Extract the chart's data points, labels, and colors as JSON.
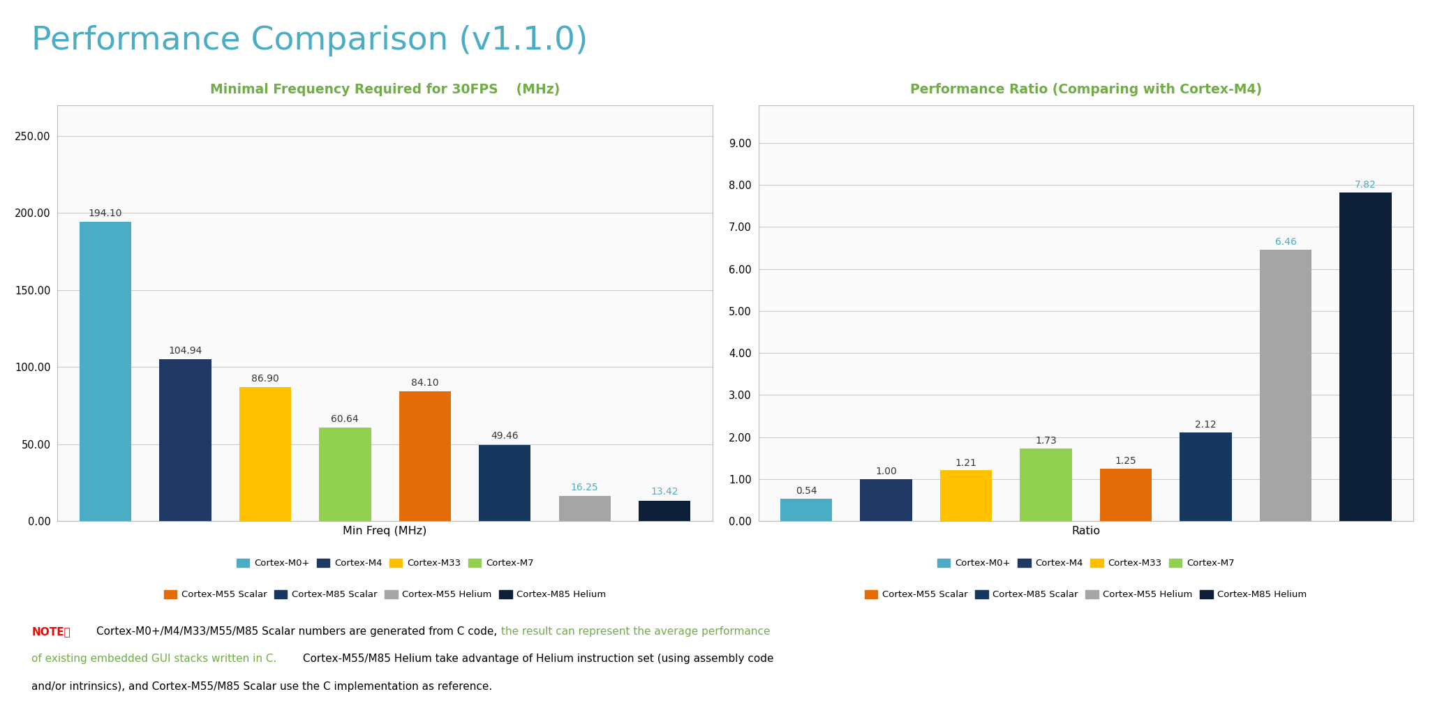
{
  "title": "Performance Comparison (v1.1.0)",
  "title_color": "#4BACC6",
  "chart1_title": "Minimal Frequency Required for 30FPS    (MHz)",
  "chart1_title_color": "#70AD47",
  "chart1_xlabel": "Min Freq (MHz)",
  "chart1_values": [
    194.1,
    104.94,
    86.9,
    60.64,
    84.1,
    49.46,
    16.25,
    13.42
  ],
  "chart1_ylim": [
    0,
    270
  ],
  "chart1_yticks": [
    0.0,
    50.0,
    100.0,
    150.0,
    200.0,
    250.0
  ],
  "chart2_title": "Performance Ratio (Comparing with Cortex-M4)",
  "chart2_title_color": "#70AD47",
  "chart2_xlabel": "Ratio",
  "chart2_values": [
    0.54,
    1.0,
    1.21,
    1.73,
    1.25,
    2.12,
    6.46,
    7.82
  ],
  "chart2_ylim": [
    0,
    9.9
  ],
  "chart2_yticks": [
    0.0,
    1.0,
    2.0,
    3.0,
    4.0,
    5.0,
    6.0,
    7.0,
    8.0,
    9.0
  ],
  "bar_colors": [
    "#4BACC6",
    "#1F3864",
    "#FFC000",
    "#92D050",
    "#E36C09",
    "#17375E",
    "#A5A5A5",
    "#0C1F37"
  ],
  "legend_labels": [
    "Cortex-M0+",
    "Cortex-M4",
    "Cortex-M33",
    "Cortex-M7",
    "Cortex-M55 Scalar",
    "Cortex-M85 Scalar",
    "Cortex-M55 Helium",
    "Cortex-M85 Helium"
  ],
  "background_color": "#FFFFFF",
  "chart_bg_color": "#FAFAFA",
  "grid_color": "#CCCCCC",
  "border_color": "#BBBBBB",
  "label_color_cyan": "#4BACC6",
  "label_color_black": "#333333",
  "note_red": "NOTE：",
  "note_line1_black": "Cortex-M0+/M4/M33/M55/M85 Scalar numbers are generated from C code, ",
  "note_line1_green": "the result can represent the average performance",
  "note_line2_green": "of existing embedded GUI stacks written in C.",
  "note_line2_black": " Cortex-M55/M85 Helium take advantage of Helium instruction set (using assembly code",
  "note_line3_black": "and/or intrinsics), and Cortex-M55/M85 Scalar use the C implementation as reference.",
  "note_color_red": "#FF0000",
  "note_color_green": "#70AD47",
  "note_color_black": "#000000"
}
